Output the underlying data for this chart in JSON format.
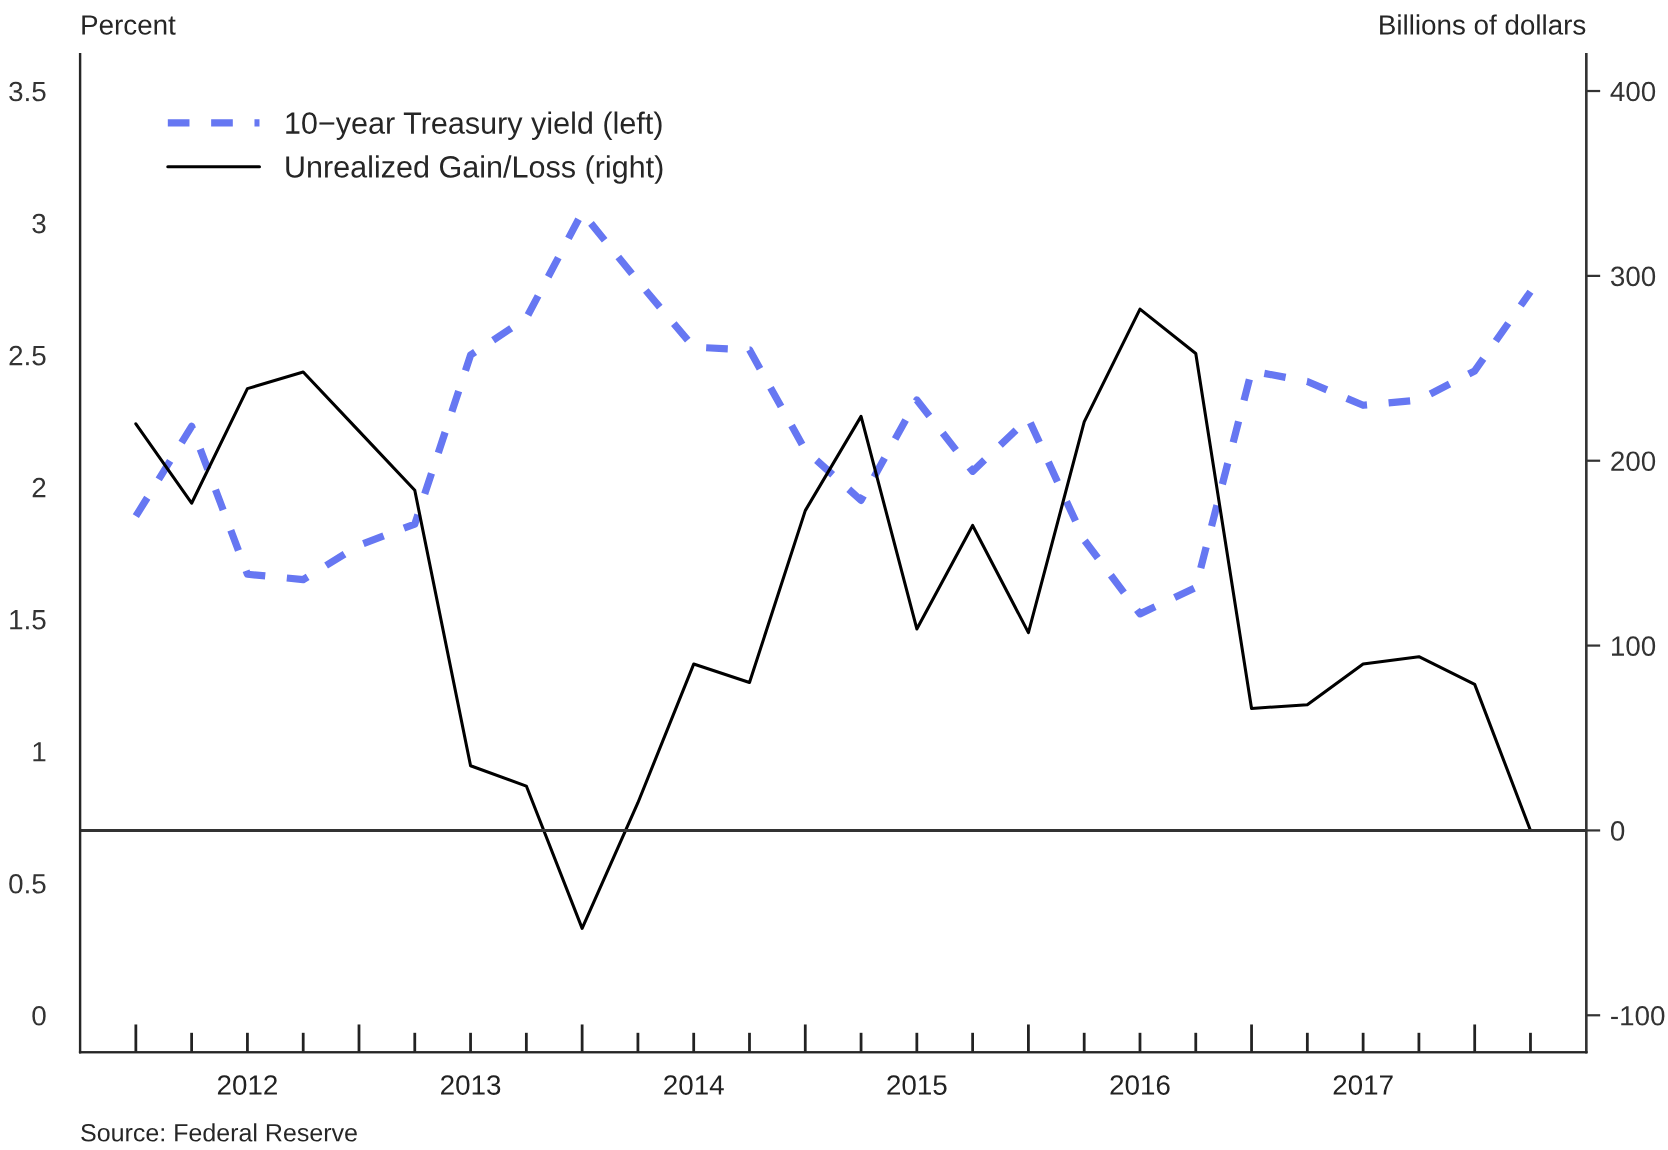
{
  "chart_data": {
    "type": "line",
    "ylabel": "Percent",
    "y2label": "Billions of dollars",
    "annotations": [
      "Source: Federal Reserve"
    ],
    "xlim": [
      2011.75,
      2018.5
    ],
    "xticks": [
      {
        "value": 2012,
        "label": null
      },
      {
        "value": 2012.25,
        "label": null
      },
      {
        "value": 2012.5,
        "label": "2012"
      },
      {
        "value": 2012.75,
        "label": null
      },
      {
        "value": 2013,
        "label": null
      },
      {
        "value": 2013.25,
        "label": null
      },
      {
        "value": 2013.5,
        "label": "2013"
      },
      {
        "value": 2013.75,
        "label": null
      },
      {
        "value": 2014,
        "label": null
      },
      {
        "value": 2014.25,
        "label": null
      },
      {
        "value": 2014.5,
        "label": "2014"
      },
      {
        "value": 2014.75,
        "label": null
      },
      {
        "value": 2015,
        "label": null
      },
      {
        "value": 2015.25,
        "label": null
      },
      {
        "value": 2015.5,
        "label": "2015"
      },
      {
        "value": 2015.75,
        "label": null
      },
      {
        "value": 2016,
        "label": null
      },
      {
        "value": 2016.25,
        "label": null
      },
      {
        "value": 2016.5,
        "label": "2016"
      },
      {
        "value": 2016.75,
        "label": null
      },
      {
        "value": 2017,
        "label": null
      },
      {
        "value": 2017.25,
        "label": null
      },
      {
        "value": 2017.5,
        "label": "2017"
      },
      {
        "value": 2017.75,
        "label": null
      },
      {
        "value": 2018,
        "label": null
      },
      {
        "value": 2018.25,
        "label": null
      }
    ],
    "ylim": [
      -0.14,
      3.64
    ],
    "yticks": [
      0,
      0.5,
      1,
      1.5,
      2,
      2.5,
      3,
      3.5
    ],
    "y2lim": [
      -120,
      420
    ],
    "y2ticks": [
      -100,
      0,
      100,
      200,
      300,
      400
    ],
    "x": [
      2012,
      2012.25,
      2012.5,
      2012.75,
      2013,
      2013.25,
      2013.5,
      2013.75,
      2014,
      2014.25,
      2014.5,
      2014.75,
      2015,
      2015.25,
      2015.5,
      2015.75,
      2016,
      2016.25,
      2016.5,
      2016.75,
      2017,
      2017.25,
      2017.5,
      2017.75,
      2018,
      2018.25
    ],
    "series": [
      {
        "name": "10−year Treasury yield (left)",
        "color": "#6677f2",
        "line_style": "dashed",
        "values": [
          1.89,
          2.23,
          1.67,
          1.65,
          1.78,
          1.86,
          2.5,
          2.64,
          3.04,
          2.78,
          2.53,
          2.52,
          2.14,
          1.95,
          2.33,
          2.06,
          2.26,
          1.8,
          1.52,
          1.62,
          2.44,
          2.4,
          2.31,
          2.33,
          2.44,
          2.74
        ]
      },
      {
        "name": "Unrealized Gain/Loss (right)",
        "color": "#000000",
        "line_style": "solid",
        "axis": "y2",
        "values": [
          220,
          177,
          239,
          248,
          216,
          184,
          35,
          24,
          -53,
          15,
          90,
          80,
          173,
          224,
          109,
          165,
          107,
          221,
          282,
          258,
          66,
          68,
          90,
          94,
          79,
          0
        ]
      }
    ],
    "ref_lines": [
      {
        "axis": "y2",
        "value": 0,
        "color": "#333333"
      }
    ],
    "legend": "top left",
    "grid": false,
    "marker": "none"
  }
}
